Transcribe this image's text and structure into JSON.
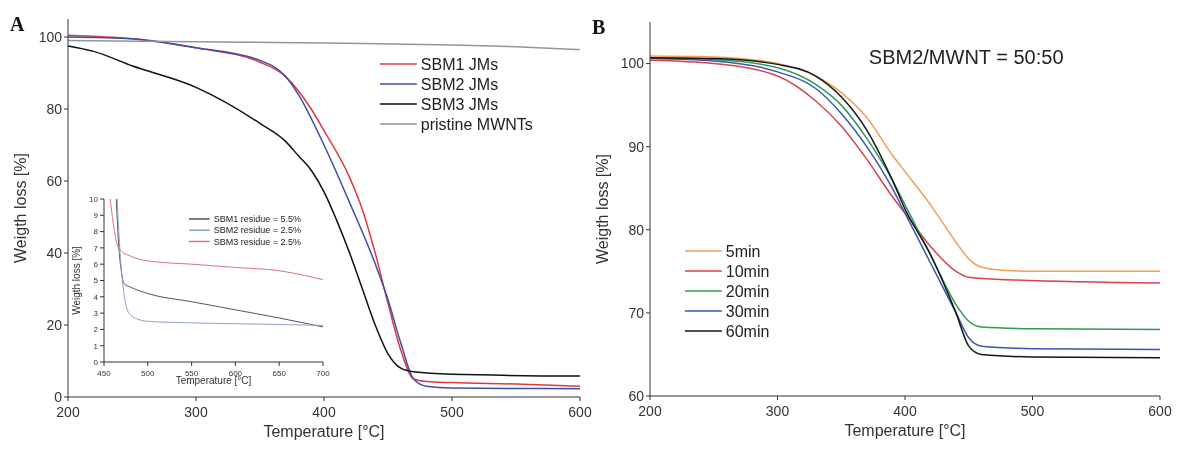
{
  "chart_data": [
    {
      "type": "line",
      "title": "A",
      "xlabel": "Temperature [°C]",
      "ylabel": "Weigth loss [%]",
      "xlim": [
        200,
        600
      ],
      "ylim": [
        0,
        105
      ],
      "xticks": [
        200,
        300,
        400,
        500,
        600
      ],
      "yticks": [
        0,
        20,
        40,
        60,
        80,
        100
      ],
      "legend": "top right",
      "grid": false,
      "line_style": "solid",
      "marker": "none",
      "series": [
        {
          "name": "SBM1 JMs",
          "color": "#e0393e",
          "x": [
            200,
            250,
            300,
            350,
            370,
            390,
            400,
            420,
            430,
            440,
            450,
            460,
            470,
            480,
            500,
            550,
            600
          ],
          "values": [
            100.5,
            99.5,
            97,
            93,
            89,
            80,
            74,
            61,
            52,
            40,
            26,
            13,
            5,
            4.3,
            4,
            3.6,
            3
          ]
        },
        {
          "name": "SBM2 JMs",
          "color": "#3b4fa8",
          "x": [
            200,
            250,
            300,
            350,
            370,
            380,
            400,
            420,
            440,
            450,
            460,
            470,
            480,
            500,
            600
          ],
          "values": [
            100,
            99.5,
            97,
            93.5,
            89,
            84,
            70,
            54,
            37,
            27,
            15,
            5,
            3,
            2.5,
            2.3
          ]
        },
        {
          "name": "SBM3 JMs",
          "color": "#111111",
          "x": [
            200,
            220,
            250,
            300,
            350,
            370,
            380,
            390,
            400,
            410,
            420,
            430,
            440,
            450,
            460,
            470,
            500,
            600
          ],
          "values": [
            97.5,
            96,
            92,
            86,
            76,
            71,
            67,
            63,
            57,
            49,
            40,
            30,
            20,
            12,
            8,
            7,
            6.3,
            5.8
          ]
        },
        {
          "name": "pristine MWNTs",
          "color": "#8c9a9a",
          "x": [
            200,
            300,
            400,
            500,
            550,
            600
          ],
          "values": [
            99,
            98.7,
            98.3,
            97.8,
            97.3,
            96.5
          ]
        }
      ]
    },
    {
      "type": "line",
      "xlabel": "Temperature [°C]",
      "ylabel": "Weigth loss [%]",
      "xlim": [
        450,
        700
      ],
      "ylim": [
        0,
        10
      ],
      "xticks": [
        450,
        500,
        550,
        600,
        650,
        700
      ],
      "yticks": [
        0,
        1,
        2,
        3,
        4,
        5,
        6,
        7,
        8,
        9,
        10
      ],
      "legend": "top right",
      "grid": false,
      "line_style": "solid",
      "marker": "none",
      "series": [
        {
          "name": "SBM1 residue = 5.5%",
          "color": "#555555",
          "x": [
            464,
            467,
            470,
            473,
            480,
            500,
            550,
            600,
            650,
            700
          ],
          "values": [
            10,
            7,
            5.5,
            4.8,
            4.6,
            4.2,
            3.7,
            3.2,
            2.7,
            2.15
          ]
        },
        {
          "name": "SBM2 residue = 2.5%",
          "color": "#8f9fd0",
          "x": [
            465,
            468,
            471,
            475,
            480,
            490,
            500,
            550,
            600,
            650,
            700
          ],
          "values": [
            10,
            7,
            5,
            3.5,
            2.9,
            2.6,
            2.5,
            2.4,
            2.35,
            2.3,
            2.25
          ]
        },
        {
          "name": "SBM3 residue = 2.5%",
          "color": "#d9757a",
          "x": [
            457,
            462,
            465,
            470,
            480,
            500,
            550,
            600,
            650,
            680,
            700
          ],
          "values": [
            10,
            8,
            7.2,
            6.8,
            6.5,
            6.2,
            6,
            5.8,
            5.6,
            5.3,
            5.05
          ]
        }
      ]
    },
    {
      "type": "line",
      "title": "B",
      "xlabel": "Temperature [°C]",
      "ylabel": "Weigth loss [%]",
      "xlim": [
        200,
        600
      ],
      "ylim": [
        60,
        105
      ],
      "xticks": [
        200,
        300,
        400,
        500,
        600
      ],
      "yticks": [
        60,
        70,
        80,
        90,
        100
      ],
      "legend": "bottom left",
      "grid": false,
      "line_style": "solid",
      "marker": "none",
      "annotations": [
        "SBM2/MWNT = 50:50"
      ],
      "series": [
        {
          "name": "5min",
          "color": "#f0a050",
          "x": [
            200,
            250,
            300,
            330,
            350,
            370,
            390,
            400,
            420,
            440,
            450,
            460,
            480,
            500,
            600
          ],
          "values": [
            100.9,
            100.8,
            100,
            98.5,
            96.5,
            93.5,
            89,
            87,
            83,
            78.5,
            76.5,
            75.5,
            75.1,
            75,
            75
          ]
        },
        {
          "name": "10min",
          "color": "#d9434b",
          "x": [
            200,
            250,
            300,
            330,
            350,
            370,
            390,
            400,
            420,
            440,
            450,
            480,
            600
          ],
          "values": [
            100.4,
            100,
            98.5,
            95.5,
            92.5,
            88.5,
            84,
            82,
            78,
            75,
            74.3,
            74,
            73.6
          ]
        },
        {
          "name": "20min",
          "color": "#2e9a55",
          "x": [
            200,
            250,
            300,
            330,
            350,
            370,
            390,
            400,
            420,
            440,
            450,
            460,
            500,
            600
          ],
          "values": [
            100.7,
            100.5,
            99.5,
            97.5,
            95,
            91,
            86,
            83,
            77,
            71,
            69,
            68.3,
            68.1,
            68
          ]
        },
        {
          "name": "30min",
          "color": "#3d56b0",
          "x": [
            200,
            250,
            300,
            330,
            350,
            370,
            390,
            400,
            420,
            440,
            450,
            460,
            500,
            600
          ],
          "values": [
            100.6,
            100.3,
            99,
            97,
            94,
            90,
            85,
            82,
            76,
            70,
            67,
            66,
            65.7,
            65.6
          ]
        },
        {
          "name": "60min",
          "color": "#151515",
          "x": [
            200,
            250,
            300,
            330,
            350,
            370,
            390,
            400,
            420,
            440,
            450,
            460,
            500,
            600
          ],
          "values": [
            100.7,
            100.6,
            99.9,
            98.5,
            96,
            92,
            86,
            82.5,
            77,
            70,
            66,
            65,
            64.7,
            64.6
          ]
        }
      ]
    }
  ]
}
